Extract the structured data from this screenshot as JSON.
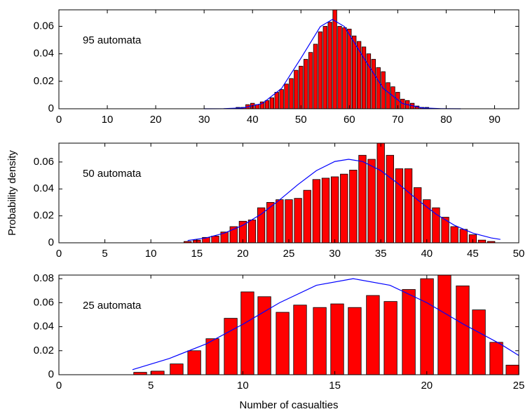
{
  "chart_data": [
    {
      "type": "bar",
      "annotation": "95 automata",
      "color": "#ff0000",
      "x": [
        37,
        38,
        39,
        40,
        41,
        42,
        43,
        44,
        45,
        46,
        47,
        48,
        49,
        50,
        51,
        52,
        53,
        54,
        55,
        56,
        57,
        58,
        59,
        60,
        61,
        62,
        63,
        64,
        65,
        66,
        67,
        68,
        69,
        70,
        71,
        72,
        73,
        74,
        75,
        76
      ],
      "values": [
        0.001,
        0.001,
        0.003,
        0.004,
        0.003,
        0.005,
        0.006,
        0.008,
        0.012,
        0.014,
        0.018,
        0.022,
        0.028,
        0.031,
        0.036,
        0.041,
        0.047,
        0.056,
        0.06,
        0.063,
        0.072,
        0.06,
        0.059,
        0.058,
        0.053,
        0.049,
        0.045,
        0.04,
        0.036,
        0.03,
        0.027,
        0.019,
        0.016,
        0.012,
        0.007,
        0.006,
        0.004,
        0.002,
        0.001,
        0.001
      ],
      "curve": {
        "type": "line",
        "color": "#0000ff",
        "x": [
          30,
          34,
          38,
          42,
          46,
          50,
          54,
          56.5,
          59,
          63,
          67,
          71,
          75,
          79,
          83
        ],
        "values": [
          0,
          7e-05,
          0.00065,
          0.0038,
          0.0148,
          0.0368,
          0.0598,
          0.065,
          0.0598,
          0.0368,
          0.0148,
          0.0038,
          0.00065,
          7e-05,
          0
        ]
      },
      "xlim": [
        0,
        95
      ],
      "xticks": [
        0,
        10,
        20,
        30,
        40,
        50,
        60,
        70,
        80,
        90
      ],
      "ylim": [
        0,
        0.072
      ],
      "yticks": [
        0,
        0.02,
        0.04,
        0.06
      ]
    },
    {
      "type": "bar",
      "annotation": "50 automata",
      "color": "#ff0000",
      "ylabel": "Probability density",
      "x": [
        14,
        15,
        16,
        17,
        18,
        19,
        20,
        21,
        22,
        23,
        24,
        25,
        26,
        27,
        28,
        29,
        30,
        31,
        32,
        33,
        34,
        35,
        36,
        37,
        38,
        39,
        40,
        41,
        42,
        43,
        44,
        45,
        46,
        47
      ],
      "values": [
        0.001,
        0.002,
        0.004,
        0.005,
        0.008,
        0.012,
        0.016,
        0.017,
        0.026,
        0.03,
        0.032,
        0.032,
        0.033,
        0.039,
        0.047,
        0.048,
        0.049,
        0.051,
        0.054,
        0.065,
        0.062,
        0.074,
        0.065,
        0.055,
        0.055,
        0.041,
        0.032,
        0.026,
        0.019,
        0.012,
        0.01,
        0.006,
        0.002,
        0.001
      ],
      "curve": {
        "type": "line",
        "color": "#0000ff",
        "x": [
          14,
          16,
          18,
          20,
          22,
          24,
          26,
          28,
          30,
          31.5,
          33,
          35,
          37,
          39,
          41,
          43,
          45,
          47,
          48
        ],
        "values": [
          0.0017,
          0.0036,
          0.0072,
          0.013,
          0.0213,
          0.0319,
          0.0433,
          0.0536,
          0.0604,
          0.062,
          0.0604,
          0.0536,
          0.0433,
          0.0319,
          0.0213,
          0.013,
          0.0072,
          0.0036,
          0.0025
        ]
      },
      "xlim": [
        0,
        50
      ],
      "xticks": [
        0,
        5,
        10,
        15,
        20,
        25,
        30,
        35,
        40,
        45,
        50
      ],
      "ylim": [
        0,
        0.074
      ],
      "yticks": [
        0,
        0.02,
        0.04,
        0.06
      ]
    },
    {
      "type": "bar",
      "annotation": "25 automata",
      "color": "#ff0000",
      "xlabel": "Number of casualties",
      "x": [
        4.42,
        5.37,
        6.4,
        7.36,
        8.35,
        9.34,
        10.25,
        11.17,
        12.16,
        13.11,
        14.18,
        15.13,
        16.08,
        17.07,
        18.03,
        19.02,
        20.01,
        20.96,
        21.95,
        22.83,
        23.78,
        24.66
      ],
      "values": [
        0.002,
        0.003,
        0.009,
        0.02,
        0.03,
        0.047,
        0.069,
        0.065,
        0.052,
        0.058,
        0.056,
        0.059,
        0.056,
        0.066,
        0.061,
        0.071,
        0.08,
        0.083,
        0.074,
        0.054,
        0.027,
        0.008
      ],
      "curve": {
        "type": "line",
        "color": "#0000ff",
        "x": [
          4,
          6,
          8,
          10,
          12,
          14,
          16,
          18,
          20,
          22,
          24,
          25
        ],
        "values": [
          0.0042,
          0.0135,
          0.0256,
          0.042,
          0.06,
          0.0745,
          0.08,
          0.0745,
          0.06,
          0.042,
          0.0256,
          0.016
        ]
      },
      "xlim": [
        0,
        25
      ],
      "xticks": [
        0,
        5,
        10,
        15,
        20,
        25
      ],
      "ylim": [
        0,
        0.083
      ],
      "yticks": [
        0,
        0.02,
        0.04,
        0.06,
        0.08
      ]
    }
  ]
}
